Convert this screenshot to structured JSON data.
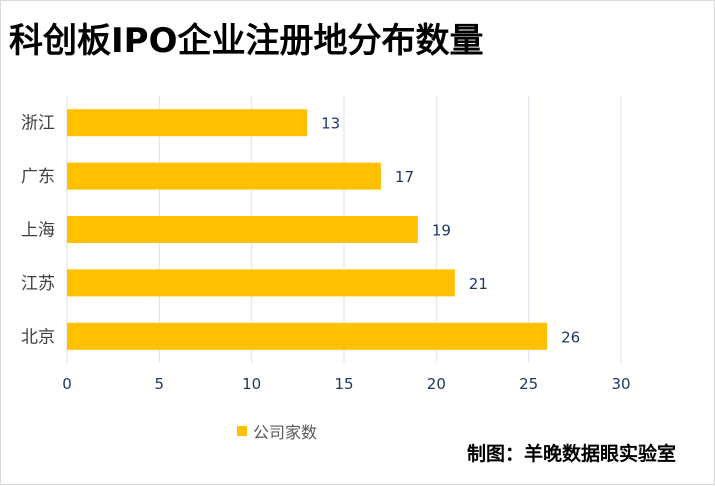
{
  "chart_data": {
    "type": "bar",
    "orientation": "horizontal",
    "title": "科创板IPO企业注册地分布数量",
    "categories": [
      "浙江",
      "广东",
      "上海",
      "江苏",
      "北京"
    ],
    "series": [
      {
        "name": "公司家数",
        "values": [
          13,
          17,
          19,
          21,
          26
        ],
        "color": "#FFC000"
      }
    ],
    "xlim": [
      0,
      30
    ],
    "xticks": [
      0,
      5,
      10,
      15,
      20,
      25,
      30
    ],
    "grid": "vertical",
    "legend_position": "bottom-left",
    "data_labels": true
  },
  "credit": "制图：羊晚数据眼实验室",
  "colors": {
    "bar": "#FFC000",
    "grid": "#d9e1ef",
    "axis_text": "#404040",
    "label_text": "#1f3864"
  }
}
